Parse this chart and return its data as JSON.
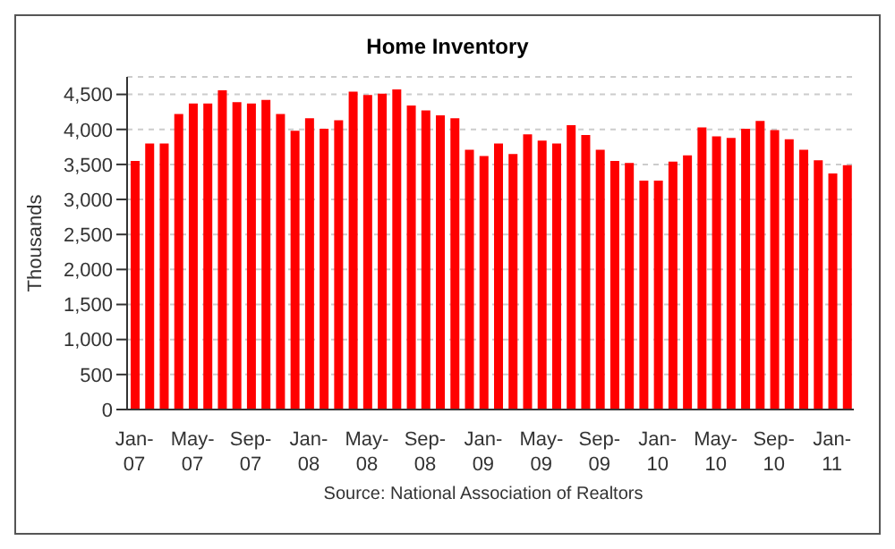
{
  "chart_data": {
    "type": "bar",
    "title": "Home Inventory",
    "ylabel": "Thousands",
    "annotations": [
      "Source: National Association of Realtors"
    ],
    "categories": [
      "Jan-07",
      null,
      null,
      null,
      "May-07",
      null,
      null,
      null,
      "Sep-07",
      null,
      null,
      null,
      "Jan-08",
      null,
      null,
      null,
      "May-08",
      null,
      null,
      null,
      "Sep-08",
      null,
      null,
      null,
      "Jan-09",
      null,
      null,
      null,
      "May-09",
      null,
      null,
      null,
      "Sep-09",
      null,
      null,
      null,
      "Jan-10",
      null,
      null,
      null,
      "May-10",
      null,
      null,
      null,
      "Sep-10",
      null,
      null,
      null,
      "Jan-11",
      null
    ],
    "values": [
      3550,
      3800,
      3800,
      4220,
      4370,
      4370,
      4560,
      4390,
      4370,
      4420,
      4220,
      3980,
      4160,
      4010,
      4130,
      4540,
      4490,
      4510,
      4570,
      4340,
      4270,
      4200,
      4160,
      3710,
      3620,
      3800,
      3650,
      3930,
      3840,
      3800,
      4060,
      3920,
      3710,
      3550,
      3520,
      3270,
      3270,
      3540,
      3630,
      4030,
      3900,
      3880,
      4010,
      4120,
      3990,
      3860,
      3710,
      3560,
      3370,
      3490
    ],
    "color": "#ff0000",
    "ylim": [
      0,
      4750
    ],
    "yticks": [
      0,
      500,
      {
        "value": 1000,
        "label": "1,000"
      },
      {
        "value": 1500,
        "label": "1,500"
      },
      {
        "value": 2000,
        "label": "2,000"
      },
      {
        "value": 2500,
        "label": "2,500"
      },
      {
        "value": 3000,
        "label": "3,000"
      },
      {
        "value": 3500,
        "label": "3,500"
      },
      {
        "value": 4000,
        "label": "4,000"
      },
      {
        "value": 4500,
        "label": "4,500"
      }
    ],
    "grid": "y"
  }
}
